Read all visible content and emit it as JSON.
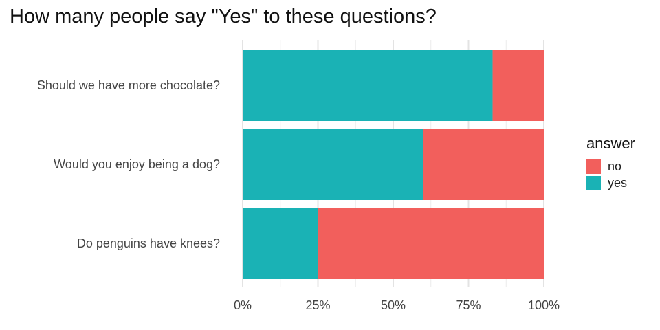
{
  "chart_data": {
    "type": "bar",
    "orientation": "horizontal",
    "stacked": "percent",
    "title": "How many people say \"Yes\" to these questions?",
    "categories": [
      "Should we have more chocolate?",
      "Would you enjoy being a dog?",
      "Do penguins have knees?"
    ],
    "series": [
      {
        "name": "yes",
        "values": [
          0.83,
          0.6,
          0.25
        ],
        "color": "#1AB2B5"
      },
      {
        "name": "no",
        "values": [
          0.17,
          0.4,
          0.75
        ],
        "color": "#F25F5C"
      }
    ],
    "xlim": [
      0,
      1
    ],
    "x_ticks": [
      0,
      0.25,
      0.5,
      0.75,
      1
    ],
    "x_tick_labels": [
      "0%",
      "25%",
      "50%",
      "75%",
      "100%"
    ],
    "grid": true,
    "legend": {
      "title": "answer",
      "placement": "right",
      "entries": [
        {
          "label": "no",
          "color": "#F25F5C"
        },
        {
          "label": "yes",
          "color": "#1AB2B5"
        }
      ]
    }
  }
}
